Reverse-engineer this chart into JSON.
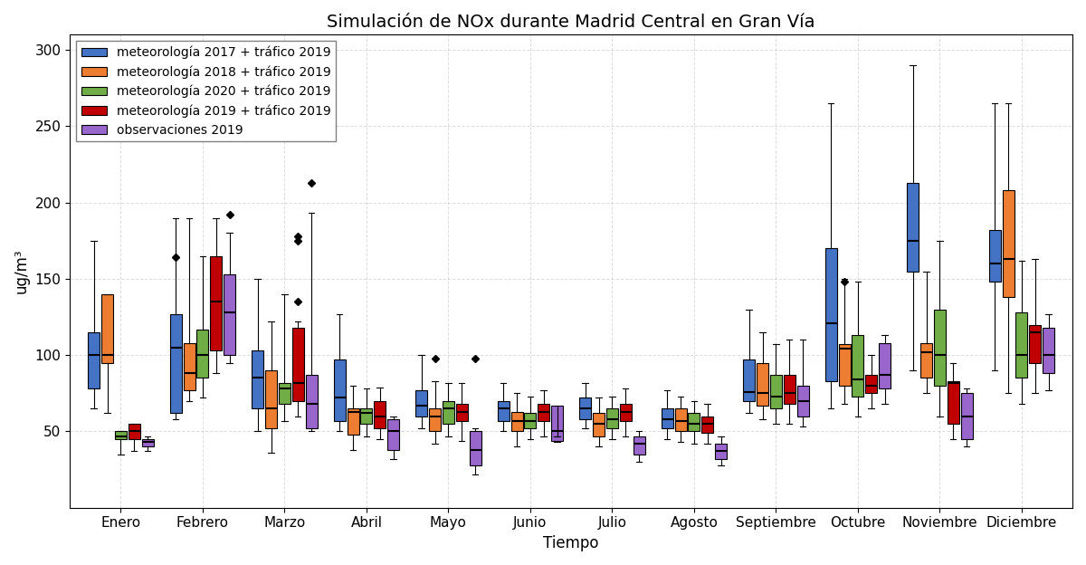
{
  "title": "Simulación de NOx durante Madrid Central en Gran Vía",
  "xlabel": "Tiempo",
  "ylabel": "ug/m³",
  "months": [
    "Enero",
    "Febrero",
    "Marzo",
    "Abril",
    "Mayo",
    "Junio",
    "Julio",
    "Agosto",
    "Septiembre",
    "Octubre",
    "Noviembre",
    "Diciembre"
  ],
  "series_labels": [
    "meteorología 2017 + tráfico 2019",
    "meteorología 2018 + tráfico 2019",
    "meteorología 2020 + tráfico 2019",
    "meteorología 2019 + tráfico 2019",
    "observaciones 2019"
  ],
  "colors": [
    "#4472c4",
    "#ed7d31",
    "#70ad47",
    "#c00000",
    "#9966cc"
  ],
  "ylim": [
    0,
    310
  ],
  "yticks": [
    50,
    100,
    150,
    200,
    250,
    300
  ],
  "box_data": {
    "met2017": {
      "Enero": {
        "whislo": 65,
        "q1": 78,
        "med": 100,
        "q3": 115,
        "whishi": 175,
        "fliers": []
      },
      "Febrero": {
        "whislo": 58,
        "q1": 62,
        "med": 105,
        "q3": 127,
        "whishi": 190,
        "fliers": [
          164
        ]
      },
      "Marzo": {
        "whislo": 50,
        "q1": 65,
        "med": 85,
        "q3": 103,
        "whishi": 150,
        "fliers": []
      },
      "Abril": {
        "whislo": 50,
        "q1": 57,
        "med": 72,
        "q3": 97,
        "whishi": 127,
        "fliers": []
      },
      "Mayo": {
        "whislo": 52,
        "q1": 60,
        "med": 67,
        "q3": 77,
        "whishi": 100,
        "fliers": []
      },
      "Junio": {
        "whislo": 50,
        "q1": 57,
        "med": 65,
        "q3": 70,
        "whishi": 82,
        "fliers": []
      },
      "Julio": {
        "whislo": 52,
        "q1": 58,
        "med": 65,
        "q3": 72,
        "whishi": 82,
        "fliers": []
      },
      "Agosto": {
        "whislo": 45,
        "q1": 52,
        "med": 58,
        "q3": 65,
        "whishi": 77,
        "fliers": []
      },
      "Septiembre": {
        "whislo": 62,
        "q1": 70,
        "med": 76,
        "q3": 97,
        "whishi": 130,
        "fliers": []
      },
      "Octubre": {
        "whislo": 65,
        "q1": 83,
        "med": 121,
        "q3": 170,
        "whishi": 265,
        "fliers": []
      },
      "Noviembre": {
        "whislo": 90,
        "q1": 155,
        "med": 175,
        "q3": 213,
        "whishi": 290,
        "fliers": []
      },
      "Diciembre": {
        "whislo": 90,
        "q1": 148,
        "med": 160,
        "q3": 182,
        "whishi": 265,
        "fliers": []
      }
    },
    "met2018": {
      "Enero": {
        "whislo": 62,
        "q1": 95,
        "med": 100,
        "q3": 140,
        "whishi": 140,
        "fliers": []
      },
      "Febrero": {
        "whislo": 70,
        "q1": 77,
        "med": 88,
        "q3": 108,
        "whishi": 190,
        "fliers": []
      },
      "Marzo": {
        "whislo": 36,
        "q1": 52,
        "med": 65,
        "q3": 90,
        "whishi": 122,
        "fliers": []
      },
      "Abril": {
        "whislo": 38,
        "q1": 48,
        "med": 63,
        "q3": 65,
        "whishi": 80,
        "fliers": []
      },
      "Mayo": {
        "whislo": 42,
        "q1": 50,
        "med": 60,
        "q3": 65,
        "whishi": 83,
        "fliers": [
          98
        ]
      },
      "Junio": {
        "whislo": 40,
        "q1": 50,
        "med": 57,
        "q3": 63,
        "whishi": 75,
        "fliers": []
      },
      "Julio": {
        "whislo": 40,
        "q1": 47,
        "med": 55,
        "q3": 62,
        "whishi": 72,
        "fliers": []
      },
      "Agosto": {
        "whislo": 43,
        "q1": 50,
        "med": 57,
        "q3": 65,
        "whishi": 73,
        "fliers": []
      },
      "Septiembre": {
        "whislo": 58,
        "q1": 67,
        "med": 75,
        "q3": 95,
        "whishi": 115,
        "fliers": []
      },
      "Octubre": {
        "whislo": 68,
        "q1": 80,
        "med": 104,
        "q3": 107,
        "whishi": 150,
        "fliers": [
          148
        ]
      },
      "Noviembre": {
        "whislo": 75,
        "q1": 85,
        "med": 102,
        "q3": 108,
        "whishi": 155,
        "fliers": []
      },
      "Diciembre": {
        "whislo": 75,
        "q1": 138,
        "med": 163,
        "q3": 208,
        "whishi": 265,
        "fliers": []
      }
    },
    "met2020": {
      "Enero": {
        "whislo": 35,
        "q1": 45,
        "med": 47,
        "q3": 50,
        "whishi": 50,
        "fliers": []
      },
      "Febrero": {
        "whislo": 72,
        "q1": 85,
        "med": 100,
        "q3": 117,
        "whishi": 165,
        "fliers": []
      },
      "Marzo": {
        "whislo": 57,
        "q1": 68,
        "med": 78,
        "q3": 82,
        "whishi": 140,
        "fliers": []
      },
      "Abril": {
        "whislo": 47,
        "q1": 55,
        "med": 62,
        "q3": 65,
        "whishi": 78,
        "fliers": []
      },
      "Mayo": {
        "whislo": 47,
        "q1": 55,
        "med": 65,
        "q3": 70,
        "whishi": 82,
        "fliers": []
      },
      "Junio": {
        "whislo": 45,
        "q1": 52,
        "med": 57,
        "q3": 62,
        "whishi": 73,
        "fliers": []
      },
      "Julio": {
        "whislo": 45,
        "q1": 52,
        "med": 58,
        "q3": 65,
        "whishi": 73,
        "fliers": []
      },
      "Agosto": {
        "whislo": 42,
        "q1": 50,
        "med": 55,
        "q3": 62,
        "whishi": 70,
        "fliers": []
      },
      "Septiembre": {
        "whislo": 55,
        "q1": 65,
        "med": 73,
        "q3": 87,
        "whishi": 107,
        "fliers": []
      },
      "Octubre": {
        "whislo": 60,
        "q1": 73,
        "med": 84,
        "q3": 113,
        "whishi": 148,
        "fliers": []
      },
      "Noviembre": {
        "whislo": 60,
        "q1": 80,
        "med": 100,
        "q3": 130,
        "whishi": 175,
        "fliers": []
      },
      "Diciembre": {
        "whislo": 68,
        "q1": 85,
        "med": 100,
        "q3": 128,
        "whishi": 162,
        "fliers": []
      }
    },
    "met2019": {
      "Enero": {
        "whislo": 37,
        "q1": 45,
        "med": 50,
        "q3": 55,
        "whishi": 55,
        "fliers": []
      },
      "Febrero": {
        "whislo": 88,
        "q1": 103,
        "med": 135,
        "q3": 165,
        "whishi": 190,
        "fliers": []
      },
      "Marzo": {
        "whislo": 60,
        "q1": 70,
        "med": 82,
        "q3": 118,
        "whishi": 122,
        "fliers": [
          135,
          178,
          175
        ]
      },
      "Abril": {
        "whislo": 45,
        "q1": 52,
        "med": 60,
        "q3": 70,
        "whishi": 79,
        "fliers": []
      },
      "Mayo": {
        "whislo": 44,
        "q1": 57,
        "med": 63,
        "q3": 68,
        "whishi": 82,
        "fliers": []
      },
      "Junio": {
        "whislo": 47,
        "q1": 57,
        "med": 63,
        "q3": 68,
        "whishi": 77,
        "fliers": []
      },
      "Julio": {
        "whislo": 47,
        "q1": 57,
        "med": 63,
        "q3": 68,
        "whishi": 78,
        "fliers": []
      },
      "Agosto": {
        "whislo": 42,
        "q1": 49,
        "med": 55,
        "q3": 60,
        "whishi": 68,
        "fliers": []
      },
      "Septiembre": {
        "whislo": 55,
        "q1": 68,
        "med": 75,
        "q3": 87,
        "whishi": 110,
        "fliers": []
      },
      "Octubre": {
        "whislo": 65,
        "q1": 75,
        "med": 80,
        "q3": 87,
        "whishi": 100,
        "fliers": []
      },
      "Noviembre": {
        "whislo": 45,
        "q1": 55,
        "med": 82,
        "q3": 83,
        "whishi": 95,
        "fliers": []
      },
      "Diciembre": {
        "whislo": 75,
        "q1": 95,
        "med": 115,
        "q3": 120,
        "whishi": 163,
        "fliers": []
      }
    },
    "obs2019": {
      "Enero": {
        "whislo": 37,
        "q1": 40,
        "med": 43,
        "q3": 45,
        "whishi": 47,
        "fliers": []
      },
      "Febrero": {
        "whislo": 95,
        "q1": 100,
        "med": 128,
        "q3": 153,
        "whishi": 180,
        "fliers": [
          192
        ]
      },
      "Marzo": {
        "whislo": 50,
        "q1": 52,
        "med": 68,
        "q3": 87,
        "whishi": 193,
        "fliers": [
          213
        ]
      },
      "Abril": {
        "whislo": 32,
        "q1": 38,
        "med": 50,
        "q3": 58,
        "whishi": 60,
        "fliers": []
      },
      "Mayo": {
        "whislo": 22,
        "q1": 28,
        "med": 38,
        "q3": 50,
        "whishi": 52,
        "fliers": [
          98
        ]
      },
      "Junio": {
        "whislo": 43,
        "q1": 44,
        "med": 50,
        "q3": 67,
        "whishi": 47,
        "fliers": []
      },
      "Julio": {
        "whislo": 30,
        "q1": 35,
        "med": 42,
        "q3": 47,
        "whishi": 50,
        "fliers": []
      },
      "Agosto": {
        "whislo": 28,
        "q1": 32,
        "med": 37,
        "q3": 42,
        "whishi": 47,
        "fliers": []
      },
      "Septiembre": {
        "whislo": 53,
        "q1": 60,
        "med": 70,
        "q3": 80,
        "whishi": 110,
        "fliers": []
      },
      "Octubre": {
        "whislo": 68,
        "q1": 78,
        "med": 87,
        "q3": 108,
        "whishi": 113,
        "fliers": []
      },
      "Noviembre": {
        "whislo": 40,
        "q1": 45,
        "med": 60,
        "q3": 75,
        "whishi": 78,
        "fliers": []
      },
      "Diciembre": {
        "whislo": 77,
        "q1": 88,
        "med": 100,
        "q3": 118,
        "whishi": 127,
        "fliers": []
      }
    }
  }
}
